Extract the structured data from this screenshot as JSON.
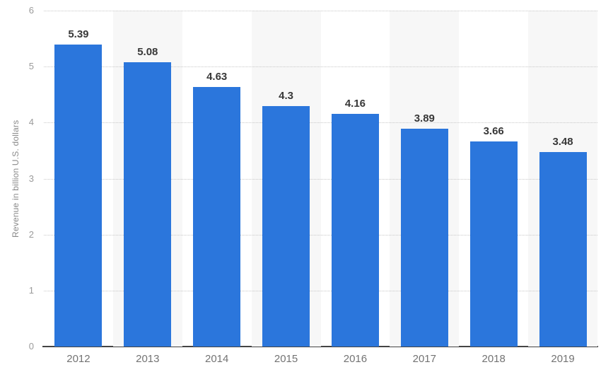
{
  "chart_data": {
    "type": "bar",
    "title": "",
    "xlabel": "",
    "ylabel": "Revenue in billion U.S. dollars",
    "categories": [
      "2012",
      "2013",
      "2014",
      "2015",
      "2016",
      "2017",
      "2018",
      "2019"
    ],
    "values": [
      5.39,
      5.08,
      4.63,
      4.3,
      4.16,
      3.89,
      3.66,
      3.48
    ],
    "value_labels": [
      "5.39",
      "5.08",
      "4.63",
      "4.3",
      "4.16",
      "3.89",
      "3.66",
      "3.48"
    ],
    "ylim": [
      0,
      6
    ],
    "yticks": [
      0,
      1,
      2,
      3,
      4,
      5,
      6
    ],
    "ytick_labels": [
      "0",
      "1",
      "2",
      "3",
      "4",
      "5",
      "6"
    ],
    "grid": "horizontal-dotted",
    "legend_position": "none",
    "background_bands": "alternate-columns-shaded",
    "colors": {
      "bar": "#2b76dc",
      "band": "#f7f7f7",
      "grid": "#c8c8c8",
      "axis": "#444444",
      "ytick_label": "#9b9b9b",
      "xtick_label": "#737373",
      "value_label": "#383838",
      "background": "#ffffff"
    }
  }
}
